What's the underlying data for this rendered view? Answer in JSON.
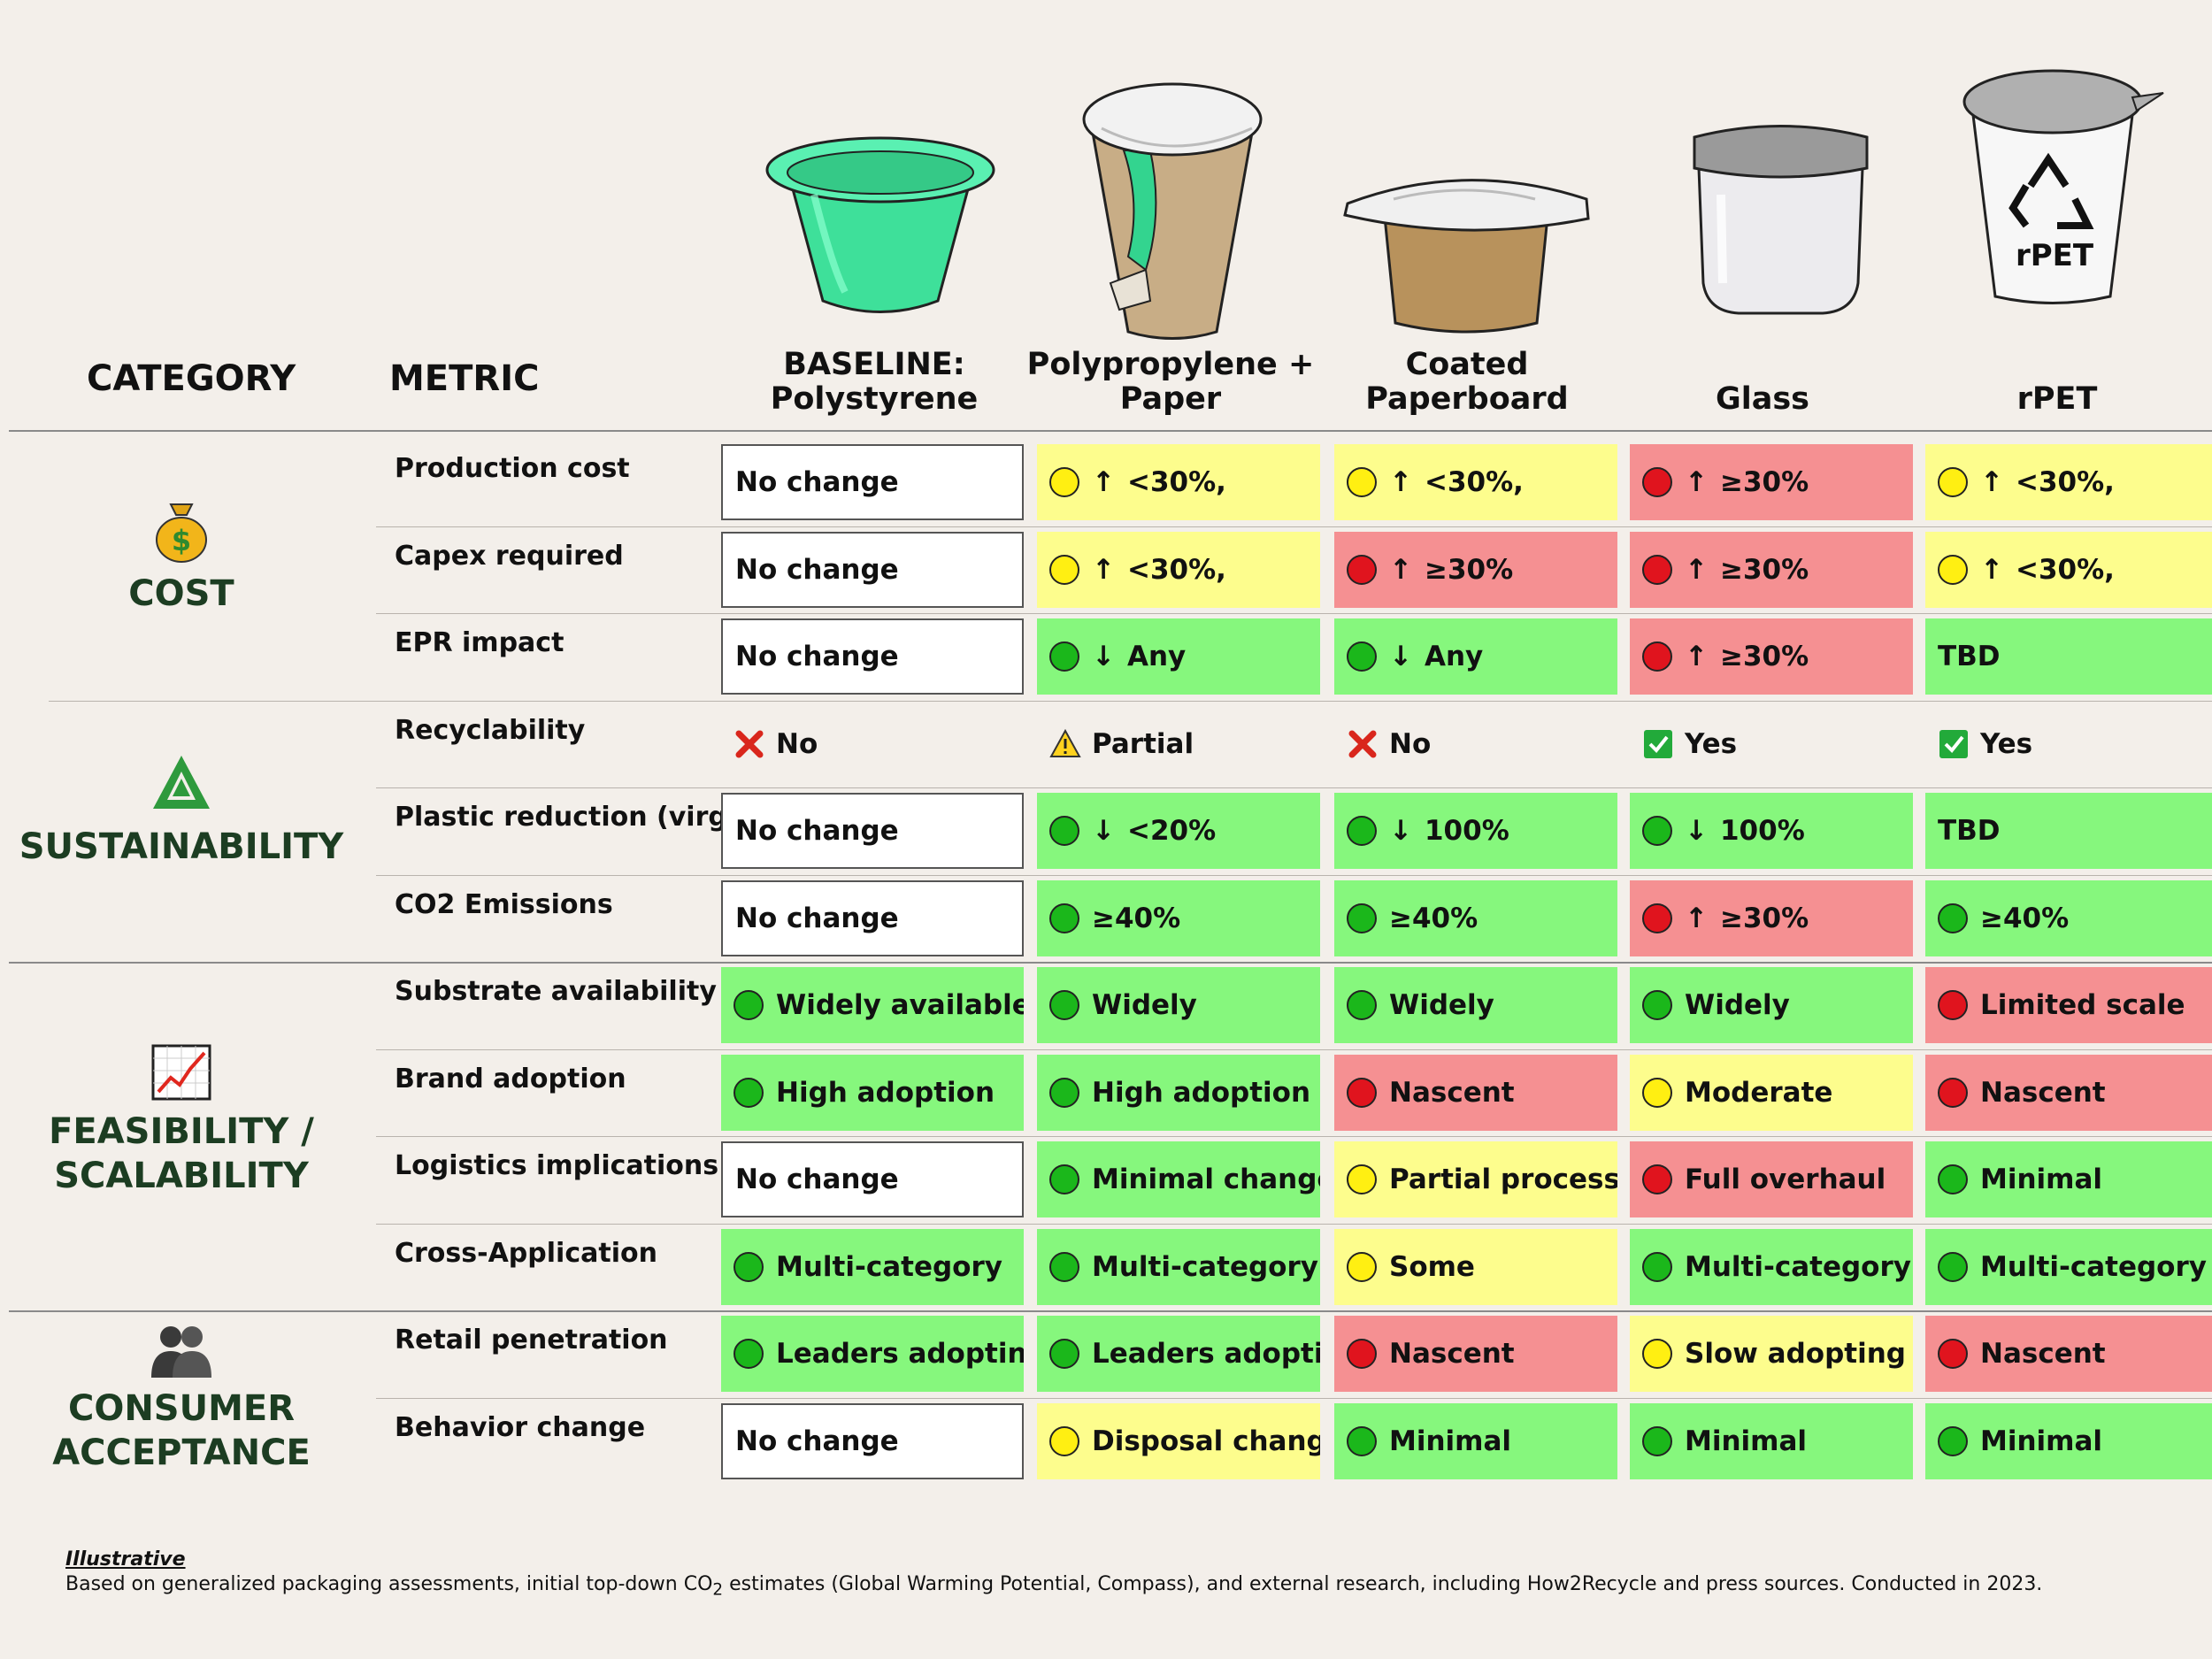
{
  "header": {
    "category_label": "CATEGORY",
    "metric_label": "METRIC",
    "columns": [
      {
        "line1": "BASELINE:",
        "line2": "Polystyrene"
      },
      {
        "line1": "Polypropylene +",
        "line2": "Paper"
      },
      {
        "line1": "Coated",
        "line2": "Paperboard"
      },
      {
        "line1": "",
        "line2": "Glass"
      },
      {
        "line1": "",
        "line2": "rPET"
      }
    ],
    "rpet_icon_text": "rPET"
  },
  "colors": {
    "green": "#86f77d",
    "yellow": "#fdfd8d",
    "red": "#f59092",
    "white": "#ffffff",
    "category_text": "#1c3d22",
    "background": "#f3efea"
  },
  "categories": [
    {
      "line1": "COST",
      "line2": "",
      "icon": "money-bag-icon"
    },
    {
      "line1": "SUSTAINABILITY",
      "line2": "",
      "icon": "recycle-icon"
    },
    {
      "line1": "FEASIBILITY /",
      "line2": "SCALABILITY",
      "icon": "chart-increasing-icon"
    },
    {
      "line1": "CONSUMER",
      "line2": "ACCEPTANCE",
      "icon": "people-icon"
    }
  ],
  "rows": [
    {
      "metric": "Production cost",
      "cells": [
        {
          "bg": "white",
          "text": "No change"
        },
        {
          "bg": "yellow",
          "dot": "yellow",
          "arrow": "↑",
          "text": "<30%,"
        },
        {
          "bg": "yellow",
          "dot": "yellow",
          "arrow": "↑",
          "text": "<30%,"
        },
        {
          "bg": "red",
          "dot": "red",
          "arrow": "↑",
          "text": "≥30%"
        },
        {
          "bg": "yellow",
          "dot": "yellow",
          "arrow": "↑",
          "text": "<30%,"
        }
      ]
    },
    {
      "metric": "Capex required",
      "cells": [
        {
          "bg": "white",
          "text": "No change"
        },
        {
          "bg": "yellow",
          "dot": "yellow",
          "arrow": "↑",
          "text": "<30%,"
        },
        {
          "bg": "red",
          "dot": "red",
          "arrow": "↑",
          "text": "≥30%"
        },
        {
          "bg": "red",
          "dot": "red",
          "arrow": "↑",
          "text": "≥30%"
        },
        {
          "bg": "yellow",
          "dot": "yellow",
          "arrow": "↑",
          "text": "<30%,"
        }
      ]
    },
    {
      "metric": "EPR impact",
      "cells": [
        {
          "bg": "white",
          "text": "No change"
        },
        {
          "bg": "green",
          "dot": "green",
          "arrow": "↓",
          "text": "Any"
        },
        {
          "bg": "green",
          "dot": "green",
          "arrow": "↓",
          "text": "Any"
        },
        {
          "bg": "red",
          "dot": "red",
          "arrow": "↑",
          "text": "≥30%"
        },
        {
          "bg": "green",
          "text": "TBD"
        }
      ]
    },
    {
      "metric": "Recyclability",
      "cells": [
        {
          "bg": "plain",
          "mark": "cross",
          "text": "No"
        },
        {
          "bg": "plain",
          "mark": "warn",
          "text": "Partial"
        },
        {
          "bg": "plain",
          "mark": "cross",
          "text": "No"
        },
        {
          "bg": "plain",
          "mark": "check",
          "text": "Yes"
        },
        {
          "bg": "plain",
          "mark": "check",
          "text": "Yes"
        }
      ]
    },
    {
      "metric": "Plastic reduction (virgin)",
      "cells": [
        {
          "bg": "white",
          "text": "No change"
        },
        {
          "bg": "green",
          "dot": "green",
          "arrow": "↓",
          "text": "<20%"
        },
        {
          "bg": "green",
          "dot": "green",
          "arrow": "↓",
          "text": "100%"
        },
        {
          "bg": "green",
          "dot": "green",
          "arrow": "↓",
          "text": "100%"
        },
        {
          "bg": "green",
          "text": "TBD"
        }
      ]
    },
    {
      "metric": "CO2 Emissions",
      "cells": [
        {
          "bg": "white",
          "text": "No change"
        },
        {
          "bg": "green",
          "dot": "green",
          "text": "≥40%"
        },
        {
          "bg": "green",
          "dot": "green",
          "text": "≥40%"
        },
        {
          "bg": "red",
          "dot": "red",
          "arrow": "↑",
          "text": "≥30%"
        },
        {
          "bg": "green",
          "dot": "green",
          "text": "≥40%"
        }
      ]
    },
    {
      "metric": "Substrate availability",
      "cells": [
        {
          "bg": "green",
          "dot": "green",
          "text": "Widely available"
        },
        {
          "bg": "green",
          "dot": "green",
          "text": "Widely"
        },
        {
          "bg": "green",
          "dot": "green",
          "text": "Widely"
        },
        {
          "bg": "green",
          "dot": "green",
          "text": "Widely"
        },
        {
          "bg": "red",
          "dot": "red",
          "text": "Limited scale"
        }
      ]
    },
    {
      "metric": "Brand adoption",
      "cells": [
        {
          "bg": "green",
          "dot": "green",
          "text": "High adoption"
        },
        {
          "bg": "green",
          "dot": "green",
          "text": "High adoption"
        },
        {
          "bg": "red",
          "dot": "red",
          "text": "Nascent"
        },
        {
          "bg": "yellow",
          "dot": "yellow",
          "text": "Moderate"
        },
        {
          "bg": "red",
          "dot": "red",
          "text": "Nascent"
        }
      ]
    },
    {
      "metric": "Logistics implications",
      "cells": [
        {
          "bg": "white",
          "text": "No change"
        },
        {
          "bg": "green",
          "dot": "green",
          "text": "Minimal change"
        },
        {
          "bg": "yellow",
          "dot": "yellow",
          "text": "Partial process"
        },
        {
          "bg": "red",
          "dot": "red",
          "text": "Full overhaul"
        },
        {
          "bg": "green",
          "dot": "green",
          "text": "Minimal"
        }
      ]
    },
    {
      "metric": "Cross-Application",
      "cells": [
        {
          "bg": "green",
          "dot": "green",
          "text": "Multi-category"
        },
        {
          "bg": "green",
          "dot": "green",
          "text": "Multi-category"
        },
        {
          "bg": "yellow",
          "dot": "yellow",
          "text": "Some"
        },
        {
          "bg": "green",
          "dot": "green",
          "text": "Multi-category"
        },
        {
          "bg": "green",
          "dot": "green",
          "text": "Multi-category"
        }
      ]
    },
    {
      "metric": "Retail penetration",
      "cells": [
        {
          "bg": "green",
          "dot": "green",
          "text": "Leaders adopting"
        },
        {
          "bg": "green",
          "dot": "green",
          "text": "Leaders adopting"
        },
        {
          "bg": "red",
          "dot": "red",
          "text": "Nascent"
        },
        {
          "bg": "yellow",
          "dot": "yellow",
          "text": "Slow adopting"
        },
        {
          "bg": "red",
          "dot": "red",
          "text": "Nascent"
        }
      ]
    },
    {
      "metric": "Behavior change",
      "cells": [
        {
          "bg": "white",
          "text": "No change"
        },
        {
          "bg": "yellow",
          "dot": "yellow",
          "text": "Disposal change"
        },
        {
          "bg": "green",
          "dot": "green",
          "text": "Minimal"
        },
        {
          "bg": "green",
          "dot": "green",
          "text": "Minimal"
        },
        {
          "bg": "green",
          "dot": "green",
          "text": "Minimal"
        }
      ]
    }
  ],
  "footnote": {
    "label": "Illustrative",
    "text_before": "Based on generalized packaging assessments, initial top-down CO",
    "subscript": "2",
    "text_after": " estimates (Global Warming Potential, Compass), and external research, including How2Recycle and press sources. Conducted in 2023."
  }
}
